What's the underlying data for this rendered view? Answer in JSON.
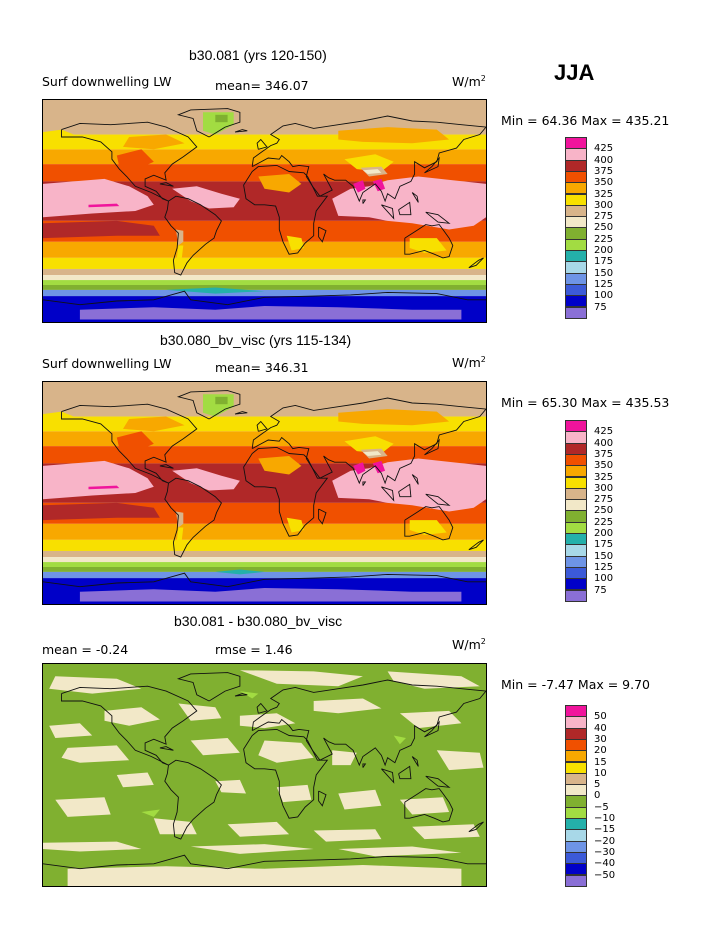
{
  "season": "JJA",
  "palette": [
    "#8a6fd6",
    "#0000c8",
    "#3c5ad8",
    "#6e94e6",
    "#a8d8e8",
    "#24b0aa",
    "#a2dc42",
    "#80b030",
    "#f2e8c8",
    "#d8b48a",
    "#f8e000",
    "#f8a800",
    "#f05000",
    "#b02828",
    "#f8b4c8",
    "#f0149c"
  ],
  "panels": [
    {
      "title": "b30.081 (yrs 120-150)",
      "field": "Surf downwelling LW",
      "mean_text": "mean= 346.07",
      "units": "W/m",
      "units_exp": "2",
      "minmax": "Min =  64.36 Max = 435.21",
      "kind": "abs"
    },
    {
      "title": "b30.080_bv_visc (yrs 115-134)",
      "field": "Surf downwelling LW",
      "mean_text": "mean= 346.31",
      "units": "W/m",
      "units_exp": "2",
      "minmax": "Min =  65.30 Max = 435.53",
      "kind": "abs"
    },
    {
      "title": "b30.081 - b30.080_bv_visc",
      "field": "mean =   -0.24",
      "mean_text": "rmse =    1.46",
      "units": "W/m",
      "units_exp": "2",
      "minmax": "Min =  -7.47 Max =   9.70",
      "kind": "diff"
    }
  ],
  "chart_data": [
    {
      "type": "heatmap",
      "title": "b30.081 (yrs 120-150)",
      "variable": "Surf downwelling LW",
      "units": "W/m^2",
      "season": "JJA",
      "mean": 346.07,
      "min": 64.36,
      "max": 435.21,
      "colorbar_levels": [
        425,
        400,
        375,
        350,
        325,
        300,
        275,
        250,
        225,
        200,
        175,
        150,
        125,
        100,
        75
      ]
    },
    {
      "type": "heatmap",
      "title": "b30.080_bv_visc (yrs 115-134)",
      "variable": "Surf downwelling LW",
      "units": "W/m^2",
      "season": "JJA",
      "mean": 346.31,
      "min": 65.3,
      "max": 435.53,
      "colorbar_levels": [
        425,
        400,
        375,
        350,
        325,
        300,
        275,
        250,
        225,
        200,
        175,
        150,
        125,
        100,
        75
      ]
    },
    {
      "type": "heatmap",
      "title": "b30.081 - b30.080_bv_visc",
      "units": "W/m^2",
      "season": "JJA",
      "mean": -0.24,
      "rmse": 1.46,
      "min": -7.47,
      "max": 9.7,
      "colorbar_levels": [
        "50",
        "40",
        "30",
        "20",
        "15",
        "10",
        "5",
        "0",
        "−5",
        "−10",
        "−15",
        "−20",
        "−30",
        "−40",
        "−50"
      ]
    }
  ]
}
